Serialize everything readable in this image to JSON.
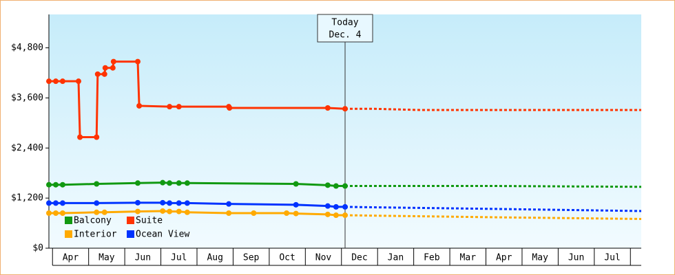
{
  "chart_data": {
    "type": "line",
    "yticks": [
      {
        "value": 0,
        "label": "$0"
      },
      {
        "value": 1200,
        "label": "$1,200"
      },
      {
        "value": 2400,
        "label": "$2,400"
      },
      {
        "value": 3600,
        "label": "$3,600"
      },
      {
        "value": 4800,
        "label": "$4,800"
      }
    ],
    "ylim": [
      0,
      5600
    ],
    "xlim": [
      -0.1,
      16.3
    ],
    "categories": [
      "Apr",
      "May",
      "Jun",
      "Jul",
      "Aug",
      "Sep",
      "Oct",
      "Nov",
      "Dec",
      "Jan",
      "Feb",
      "Mar",
      "Apr",
      "May",
      "Jun",
      "Jul"
    ],
    "today": {
      "x": 8.1,
      "label": "Today",
      "date": "Dec. 4"
    },
    "series": [
      {
        "name": "Balcony",
        "color": "#119911",
        "x": [
          -0.1,
          0.09,
          0.28,
          1.22,
          2.36,
          3.05,
          3.24,
          3.5,
          3.73,
          6.74,
          7.62,
          7.85,
          8.1
        ],
        "values": [
          1520,
          1520,
          1520,
          1540,
          1560,
          1570,
          1560,
          1560,
          1560,
          1540,
          1510,
          1490,
          1490
        ],
        "forecast_x": [
          8.1,
          8.86,
          12.3,
          16.3
        ],
        "forecast_values": [
          1490,
          1490,
          1490,
          1470
        ]
      },
      {
        "name": "Suite",
        "color": "#ff3300",
        "x": [
          -0.1,
          0.09,
          0.28,
          0.72,
          0.76,
          1.22,
          1.25,
          1.44,
          1.46,
          1.67,
          1.69,
          2.36,
          2.4,
          3.24,
          3.5,
          4.88,
          4.9,
          7.62,
          8.1
        ],
        "values": [
          4000,
          4000,
          4000,
          4000,
          2660,
          2660,
          4170,
          4170,
          4320,
          4320,
          4470,
          4470,
          3410,
          3390,
          3390,
          3390,
          3360,
          3360,
          3340
        ],
        "forecast_x": [
          8.1,
          8.86,
          10.2,
          14.2,
          16.3
        ],
        "forecast_values": [
          3340,
          3340,
          3310,
          3310,
          3310
        ]
      },
      {
        "name": "Interior",
        "color": "#ffaa00",
        "x": [
          -0.1,
          0.09,
          0.28,
          1.22,
          1.44,
          2.36,
          3.05,
          3.24,
          3.5,
          3.73,
          4.88,
          5.57,
          6.48,
          6.74,
          7.62,
          7.85,
          8.1
        ],
        "values": [
          840,
          840,
          840,
          860,
          860,
          880,
          890,
          880,
          880,
          860,
          840,
          840,
          840,
          830,
          810,
          790,
          790
        ],
        "forecast_x": [
          8.1,
          8.86,
          12.3,
          16.3
        ],
        "forecast_values": [
          790,
          780,
          740,
          700
        ]
      },
      {
        "name": "Ocean View",
        "color": "#0033ff",
        "x": [
          -0.1,
          0.09,
          0.28,
          1.22,
          2.36,
          3.05,
          3.24,
          3.5,
          3.73,
          4.88,
          6.74,
          7.62,
          7.85,
          8.1
        ],
        "values": [
          1080,
          1080,
          1080,
          1080,
          1090,
          1090,
          1080,
          1080,
          1080,
          1060,
          1040,
          1010,
          990,
          990
        ],
        "forecast_x": [
          8.1,
          8.86,
          12.3,
          16.3
        ],
        "forecast_values": [
          990,
          980,
          940,
          890
        ]
      }
    ]
  }
}
